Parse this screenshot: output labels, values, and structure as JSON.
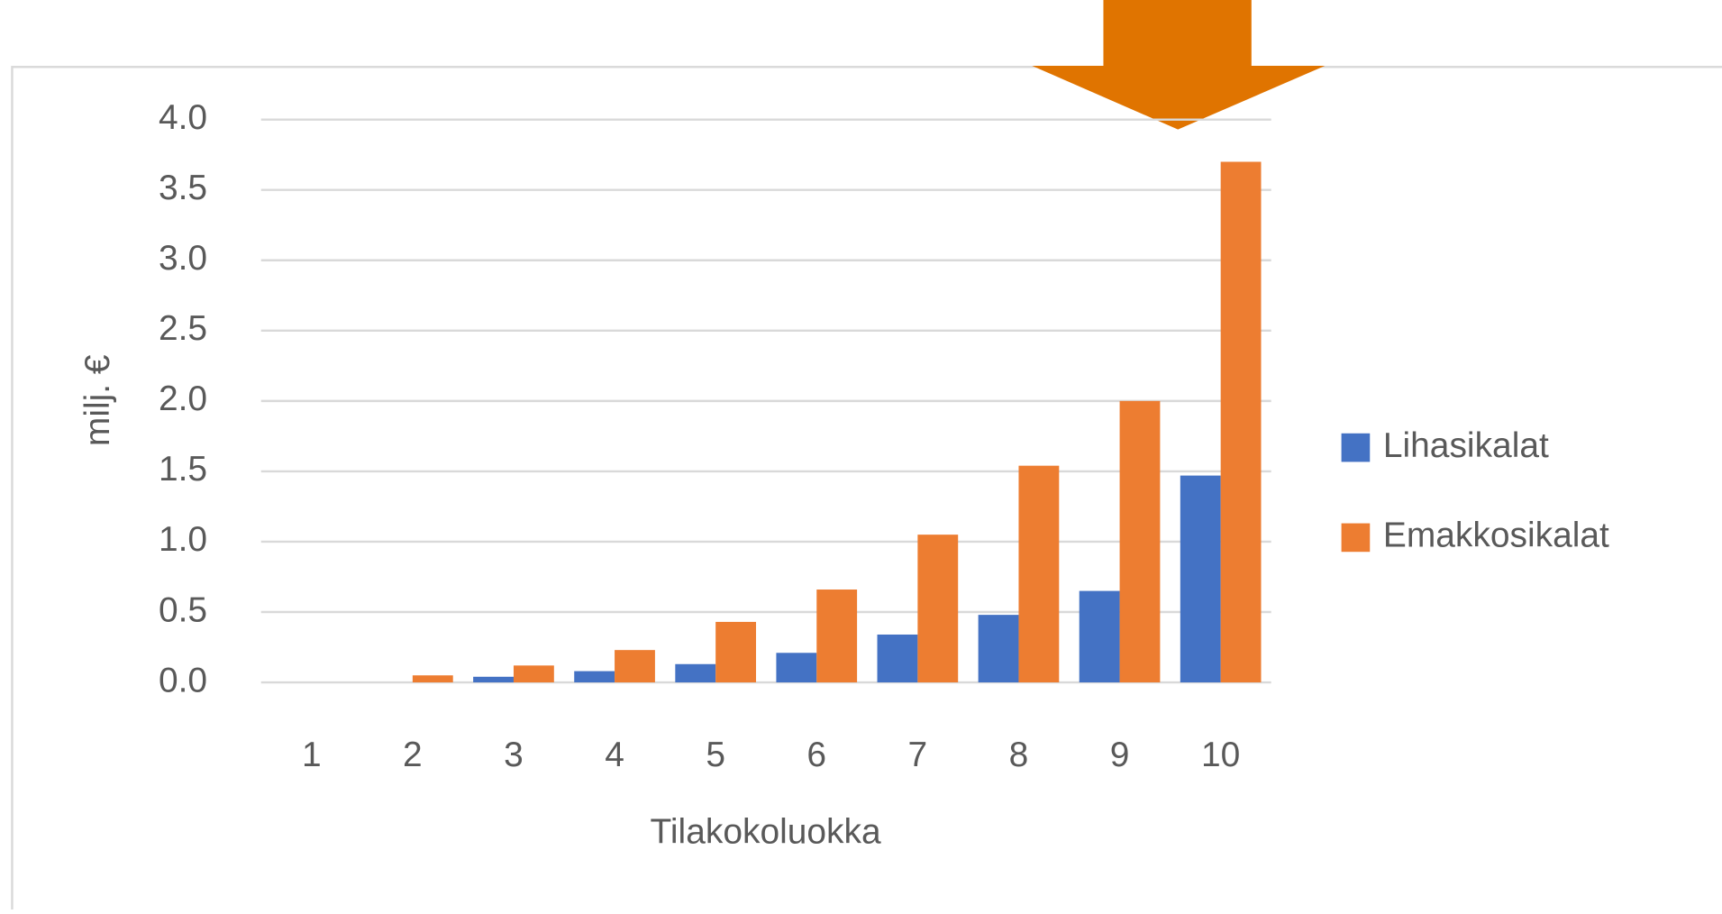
{
  "chart_data": {
    "type": "bar",
    "y_axis_label": "milj. €",
    "x_axis_label": "Tilakokoluokka",
    "categories": [
      "1",
      "2",
      "3",
      "4",
      "5",
      "6",
      "7",
      "8",
      "9",
      "10"
    ],
    "series": [
      {
        "name": "Lihasikalat",
        "color": "#4472c4",
        "values": [
          0,
          0,
          0.04,
          0.08,
          0.13,
          0.21,
          0.34,
          0.48,
          0.65,
          1.47
        ]
      },
      {
        "name": "Emakkosikalat",
        "color": "#ed7d31",
        "values": [
          0,
          0.05,
          0.12,
          0.23,
          0.43,
          0.66,
          1.05,
          1.54,
          2.0,
          3.7
        ]
      }
    ],
    "ylim": [
      0,
      4
    ],
    "yticks": [
      {
        "value": 0,
        "label": "0.0"
      },
      0.5,
      {
        "value": 1,
        "label": "1.0"
      },
      1.5,
      {
        "value": 2,
        "label": "2.0"
      },
      2.5,
      {
        "value": 3,
        "label": "3.0"
      },
      3.5,
      {
        "value": 4,
        "label": "4.0"
      }
    ],
    "grid": true,
    "legend": "right"
  }
}
